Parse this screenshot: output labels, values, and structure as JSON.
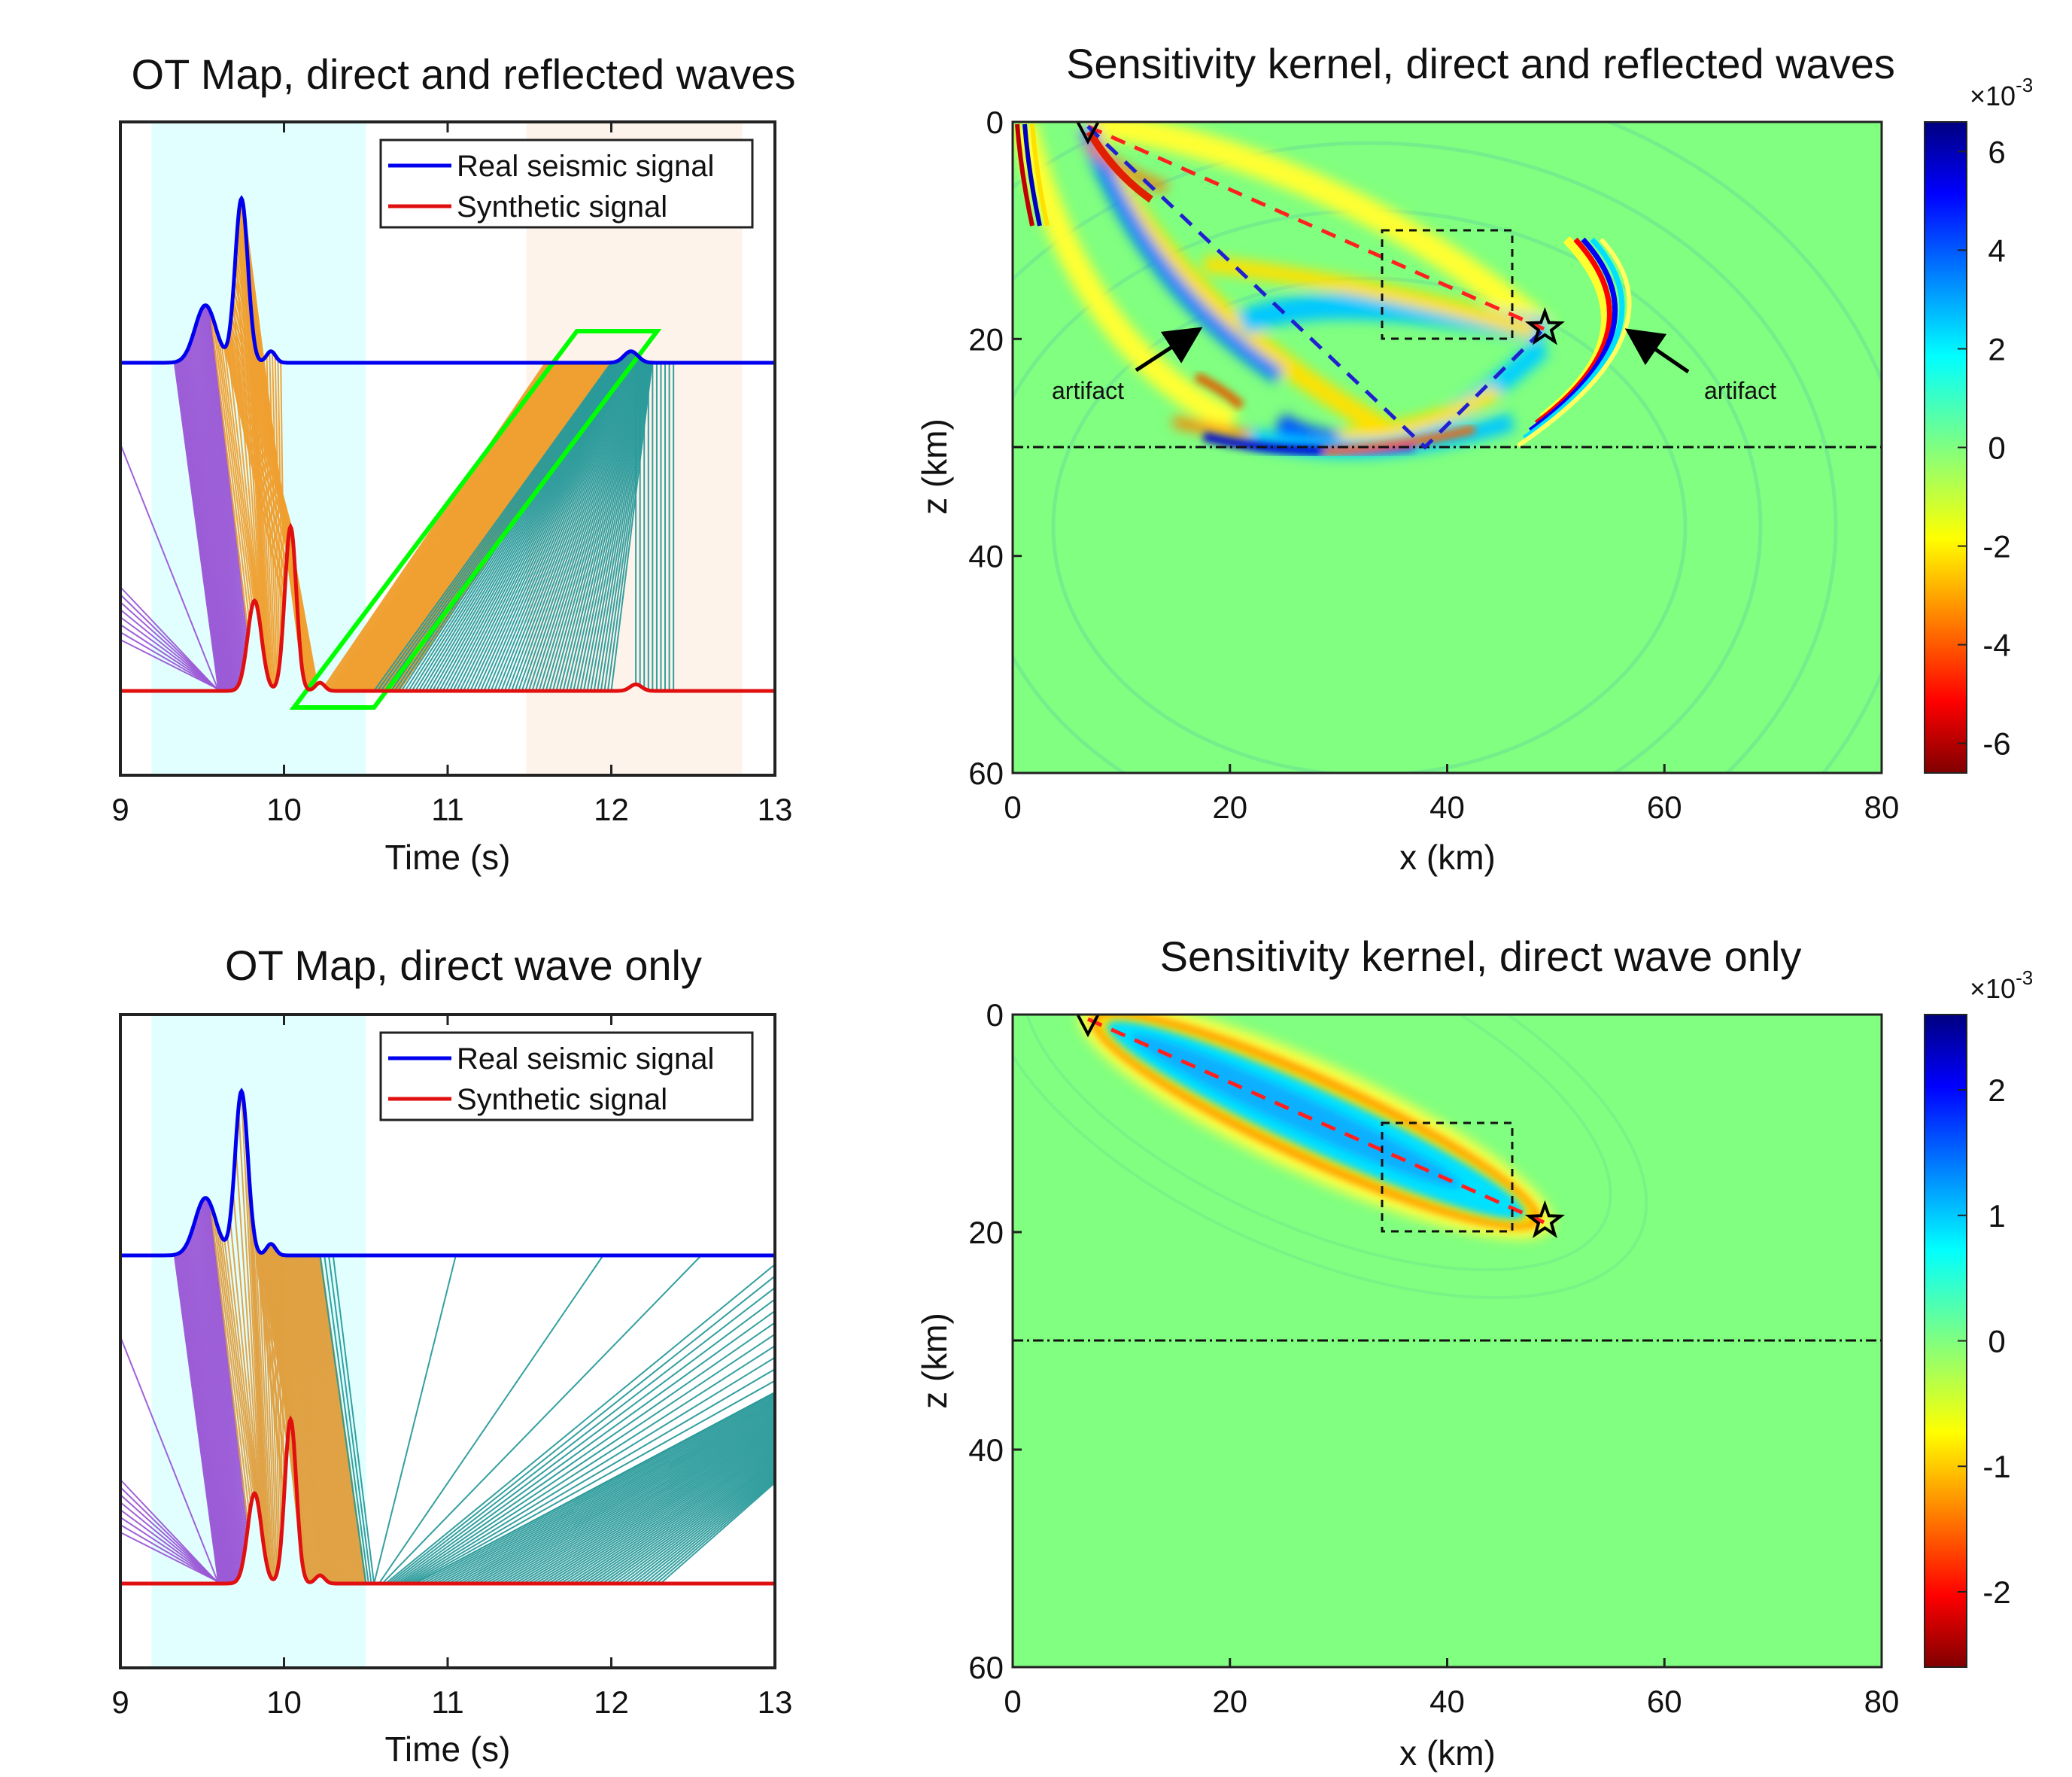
{
  "chart_data": [
    {
      "id": "ot-both",
      "type": "line",
      "title": "OT Map, direct and reflected waves",
      "xlabel": "Time (s)",
      "ylabel": "",
      "xlim": [
        9,
        13
      ],
      "xticks": [
        "9",
        "10",
        "11",
        "12",
        "13"
      ],
      "legend": {
        "placement": "top-right",
        "entries": [
          "Real seismic signal",
          "Synthetic signal"
        ]
      },
      "series": [
        {
          "name": "Real seismic signal",
          "color": "#0000ee",
          "baseline_role": "upper",
          "pulses": [
            [
              9.52,
              0.35,
              0.09
            ],
            [
              9.74,
              1.0,
              0.055
            ],
            [
              9.92,
              0.07,
              0.04
            ],
            [
              12.12,
              0.07,
              0.06
            ]
          ]
        },
        {
          "name": "Synthetic signal",
          "color": "#e01010",
          "baseline_role": "lower",
          "pulses": [
            [
              9.82,
              0.55,
              0.06
            ],
            [
              10.04,
              1.0,
              0.05
            ],
            [
              10.22,
              0.05,
              0.04
            ],
            [
              12.15,
              0.04,
              0.05
            ]
          ]
        }
      ],
      "windows": [
        {
          "t0": 9.19,
          "t1": 10.5,
          "color": "#e1ffff"
        },
        {
          "t0": 11.48,
          "t1": 12.8,
          "color": "#fdf3ea"
        }
      ],
      "highlight_box": {
        "color": "#00ff00",
        "corners": [
          [
            10.06,
            "lower"
          ],
          [
            10.55,
            "lower"
          ],
          [
            12.28,
            "upper"
          ],
          [
            11.79,
            "upper"
          ]
        ]
      },
      "colors": {
        "purple": "#9b59d6",
        "orange": "#f0a030",
        "teal": "#2a9a9a"
      }
    },
    {
      "id": "kernel-both",
      "type": "heatmap",
      "title": "Sensitivity kernel, direct and reflected waves",
      "xlabel": "x (km)",
      "ylabel": "z (km)",
      "xlim": [
        0,
        80
      ],
      "ylim": [
        0,
        60
      ],
      "xticks": [
        "0",
        "20",
        "40",
        "60",
        "80"
      ],
      "yticks": [
        "0",
        "20",
        "40",
        "60"
      ],
      "receiver": {
        "x": 7,
        "z": 0
      },
      "source": {
        "x": 49,
        "z": 19
      },
      "reflector_depth": 30,
      "reflection_point": {
        "x": 38,
        "z": 30
      },
      "dashed_box": {
        "x0": 34,
        "x1": 46,
        "z0": 10,
        "z1": 20
      },
      "annotations": [
        {
          "text": "artifact",
          "x": 7,
          "z": 25,
          "arrow_to": [
            17,
            19
          ]
        },
        {
          "text": "artifact",
          "x": 67,
          "z": 25,
          "arrow_to": [
            57,
            19
          ]
        }
      ],
      "colorbar": {
        "ticks": [
          "6",
          "4",
          "2",
          "0",
          "-2",
          "-4",
          "-6"
        ],
        "values": [
          6,
          4,
          2,
          0,
          -2,
          -4,
          -6
        ],
        "range": [
          -6.6,
          6.6
        ],
        "exponent": "×10",
        "exponent_power": "-3"
      }
    },
    {
      "id": "ot-direct",
      "type": "line",
      "title": "OT Map, direct wave only",
      "xlabel": "Time (s)",
      "ylabel": "",
      "xlim": [
        9,
        13
      ],
      "xticks": [
        "9",
        "10",
        "11",
        "12",
        "13"
      ],
      "legend": {
        "placement": "top-right",
        "entries": [
          "Real seismic signal",
          "Synthetic signal"
        ]
      },
      "series": [
        {
          "name": "Real seismic signal",
          "color": "#0000ee",
          "baseline_role": "upper",
          "pulses": [
            [
              9.52,
              0.35,
              0.09
            ],
            [
              9.74,
              1.0,
              0.055
            ],
            [
              9.92,
              0.07,
              0.04
            ]
          ]
        },
        {
          "name": "Synthetic signal",
          "color": "#e01010",
          "baseline_role": "lower",
          "pulses": [
            [
              9.82,
              0.55,
              0.06
            ],
            [
              10.04,
              1.0,
              0.05
            ],
            [
              10.22,
              0.05,
              0.04
            ]
          ]
        }
      ],
      "windows": [
        {
          "t0": 9.19,
          "t1": 10.5,
          "color": "#e1ffff"
        }
      ],
      "colors": {
        "purple": "#9b59d6",
        "orange": "#e0a040",
        "teal": "#2a9a9a"
      }
    },
    {
      "id": "kernel-direct",
      "type": "heatmap",
      "title": "Sensitivity kernel, direct wave only",
      "xlabel": "x (km)",
      "ylabel": "z (km)",
      "xlim": [
        0,
        80
      ],
      "ylim": [
        0,
        60
      ],
      "xticks": [
        "0",
        "20",
        "40",
        "60",
        "80"
      ],
      "yticks": [
        "0",
        "20",
        "40",
        "60"
      ],
      "receiver": {
        "x": 7,
        "z": 0
      },
      "source": {
        "x": 49,
        "z": 19
      },
      "reflector_depth": 30,
      "dashed_box": {
        "x0": 34,
        "x1": 46,
        "z0": 10,
        "z1": 20
      },
      "colorbar": {
        "ticks": [
          "2",
          "1",
          "0",
          "-1",
          "-2"
        ],
        "values": [
          2,
          1,
          0,
          -1,
          -2
        ],
        "range": [
          -2.6,
          2.6
        ],
        "exponent": "×10",
        "exponent_power": "-3"
      }
    }
  ]
}
